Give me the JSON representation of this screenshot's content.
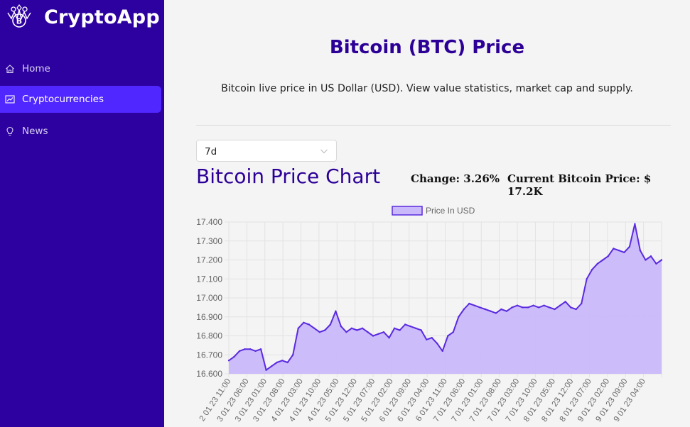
{
  "app": {
    "name": "CryptoApp"
  },
  "sidebar": {
    "items": [
      {
        "label": "Home",
        "icon": "home-icon",
        "active": false
      },
      {
        "label": "Cryptocurrencies",
        "icon": "fund-icon",
        "active": true
      },
      {
        "label": "News",
        "icon": "bulb-icon",
        "active": false
      }
    ]
  },
  "header": {
    "title": "Bitcoin (BTC) Price",
    "subtitle": "Bitcoin live price in US Dollar (USD). View value statistics, market cap and supply."
  },
  "period_select": {
    "value": "7d"
  },
  "chart_section": {
    "heading": "Bitcoin Price Chart",
    "change_text": "Change: 3.26%",
    "current_price_text": "Current Bitcoin Price: $ 17.2K"
  },
  "colors": {
    "sidebar_bg": "#2d00a0",
    "active_item": "#5127ff",
    "title": "#2c0097",
    "line": "#5a2ae0",
    "fill": "#c9b8fa"
  },
  "chart_data": {
    "type": "area",
    "legend": [
      "Price In USD"
    ],
    "legend_position": "top",
    "grid": true,
    "ylim": [
      16.6,
      17.4
    ],
    "yticks": [
      "17.400",
      "17.300",
      "17.200",
      "17.100",
      "17.000",
      "16.900",
      "16.800",
      "16.700",
      "16.600"
    ],
    "xticks": [
      "2 01 23 11:00",
      "3 01 23 06:00",
      "3 01 23 01:00",
      "3 01 23 08:00",
      "4 01 23 03:00",
      "4 01 23 10:00",
      "4 01 23 05:00",
      "5 01 23 12:00",
      "5 01 23 07:00",
      "5 01 23 02:00",
      "6 01 23 09:00",
      "6 01 23 04:00",
      "6 01 23 11:00",
      "7 01 23 06:00",
      "7 01 23 01:00",
      "7 01 23 08:00",
      "7 01 23 03:00",
      "7 01 23 10:00",
      "8 01 23 05:00",
      "8 01 23 12:00",
      "8 01 23 07:00",
      "9 01 23 02:00",
      "9 01 23 09:00",
      "9 01 23 04:00"
    ],
    "series": [
      {
        "name": "Price In USD",
        "values": [
          16.67,
          16.69,
          16.72,
          16.73,
          16.73,
          16.72,
          16.73,
          16.62,
          16.64,
          16.66,
          16.67,
          16.66,
          16.7,
          16.84,
          16.87,
          16.86,
          16.84,
          16.82,
          16.83,
          16.86,
          16.93,
          16.85,
          16.82,
          16.84,
          16.83,
          16.84,
          16.82,
          16.8,
          16.81,
          16.82,
          16.79,
          16.84,
          16.83,
          16.86,
          16.85,
          16.84,
          16.83,
          16.78,
          16.79,
          16.76,
          16.72,
          16.8,
          16.82,
          16.9,
          16.94,
          16.97,
          16.96,
          16.95,
          16.94,
          16.93,
          16.92,
          16.94,
          16.93,
          16.95,
          16.96,
          16.95,
          16.95,
          16.96,
          16.95,
          16.96,
          16.95,
          16.94,
          16.96,
          16.98,
          16.95,
          16.94,
          16.97,
          17.1,
          17.15,
          17.18,
          17.2,
          17.22,
          17.26,
          17.25,
          17.24,
          17.27,
          17.39,
          17.25,
          17.2,
          17.22,
          17.18,
          17.2
        ]
      }
    ]
  }
}
